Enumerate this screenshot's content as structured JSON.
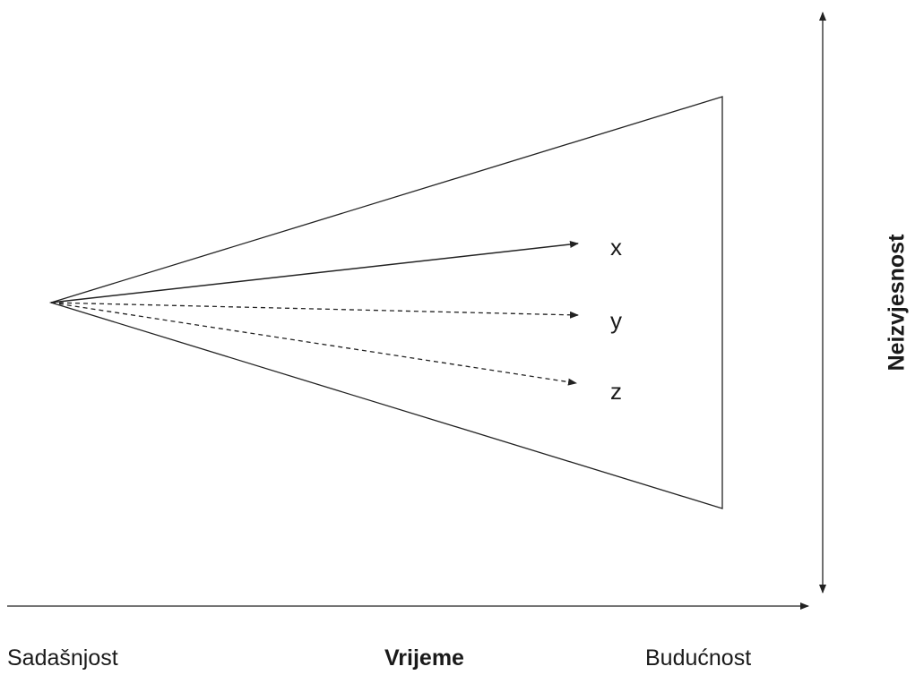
{
  "paths": [
    {
      "label": "x",
      "style": "solid"
    },
    {
      "label": "y",
      "style": "dashed"
    },
    {
      "label": "z",
      "style": "dashed"
    }
  ],
  "time_axis": {
    "start_label": "Sadašnjost",
    "title": "Vrijeme",
    "end_label": "Budućnost"
  },
  "uncertainty_axis": {
    "title": "Neizvjesnost"
  }
}
